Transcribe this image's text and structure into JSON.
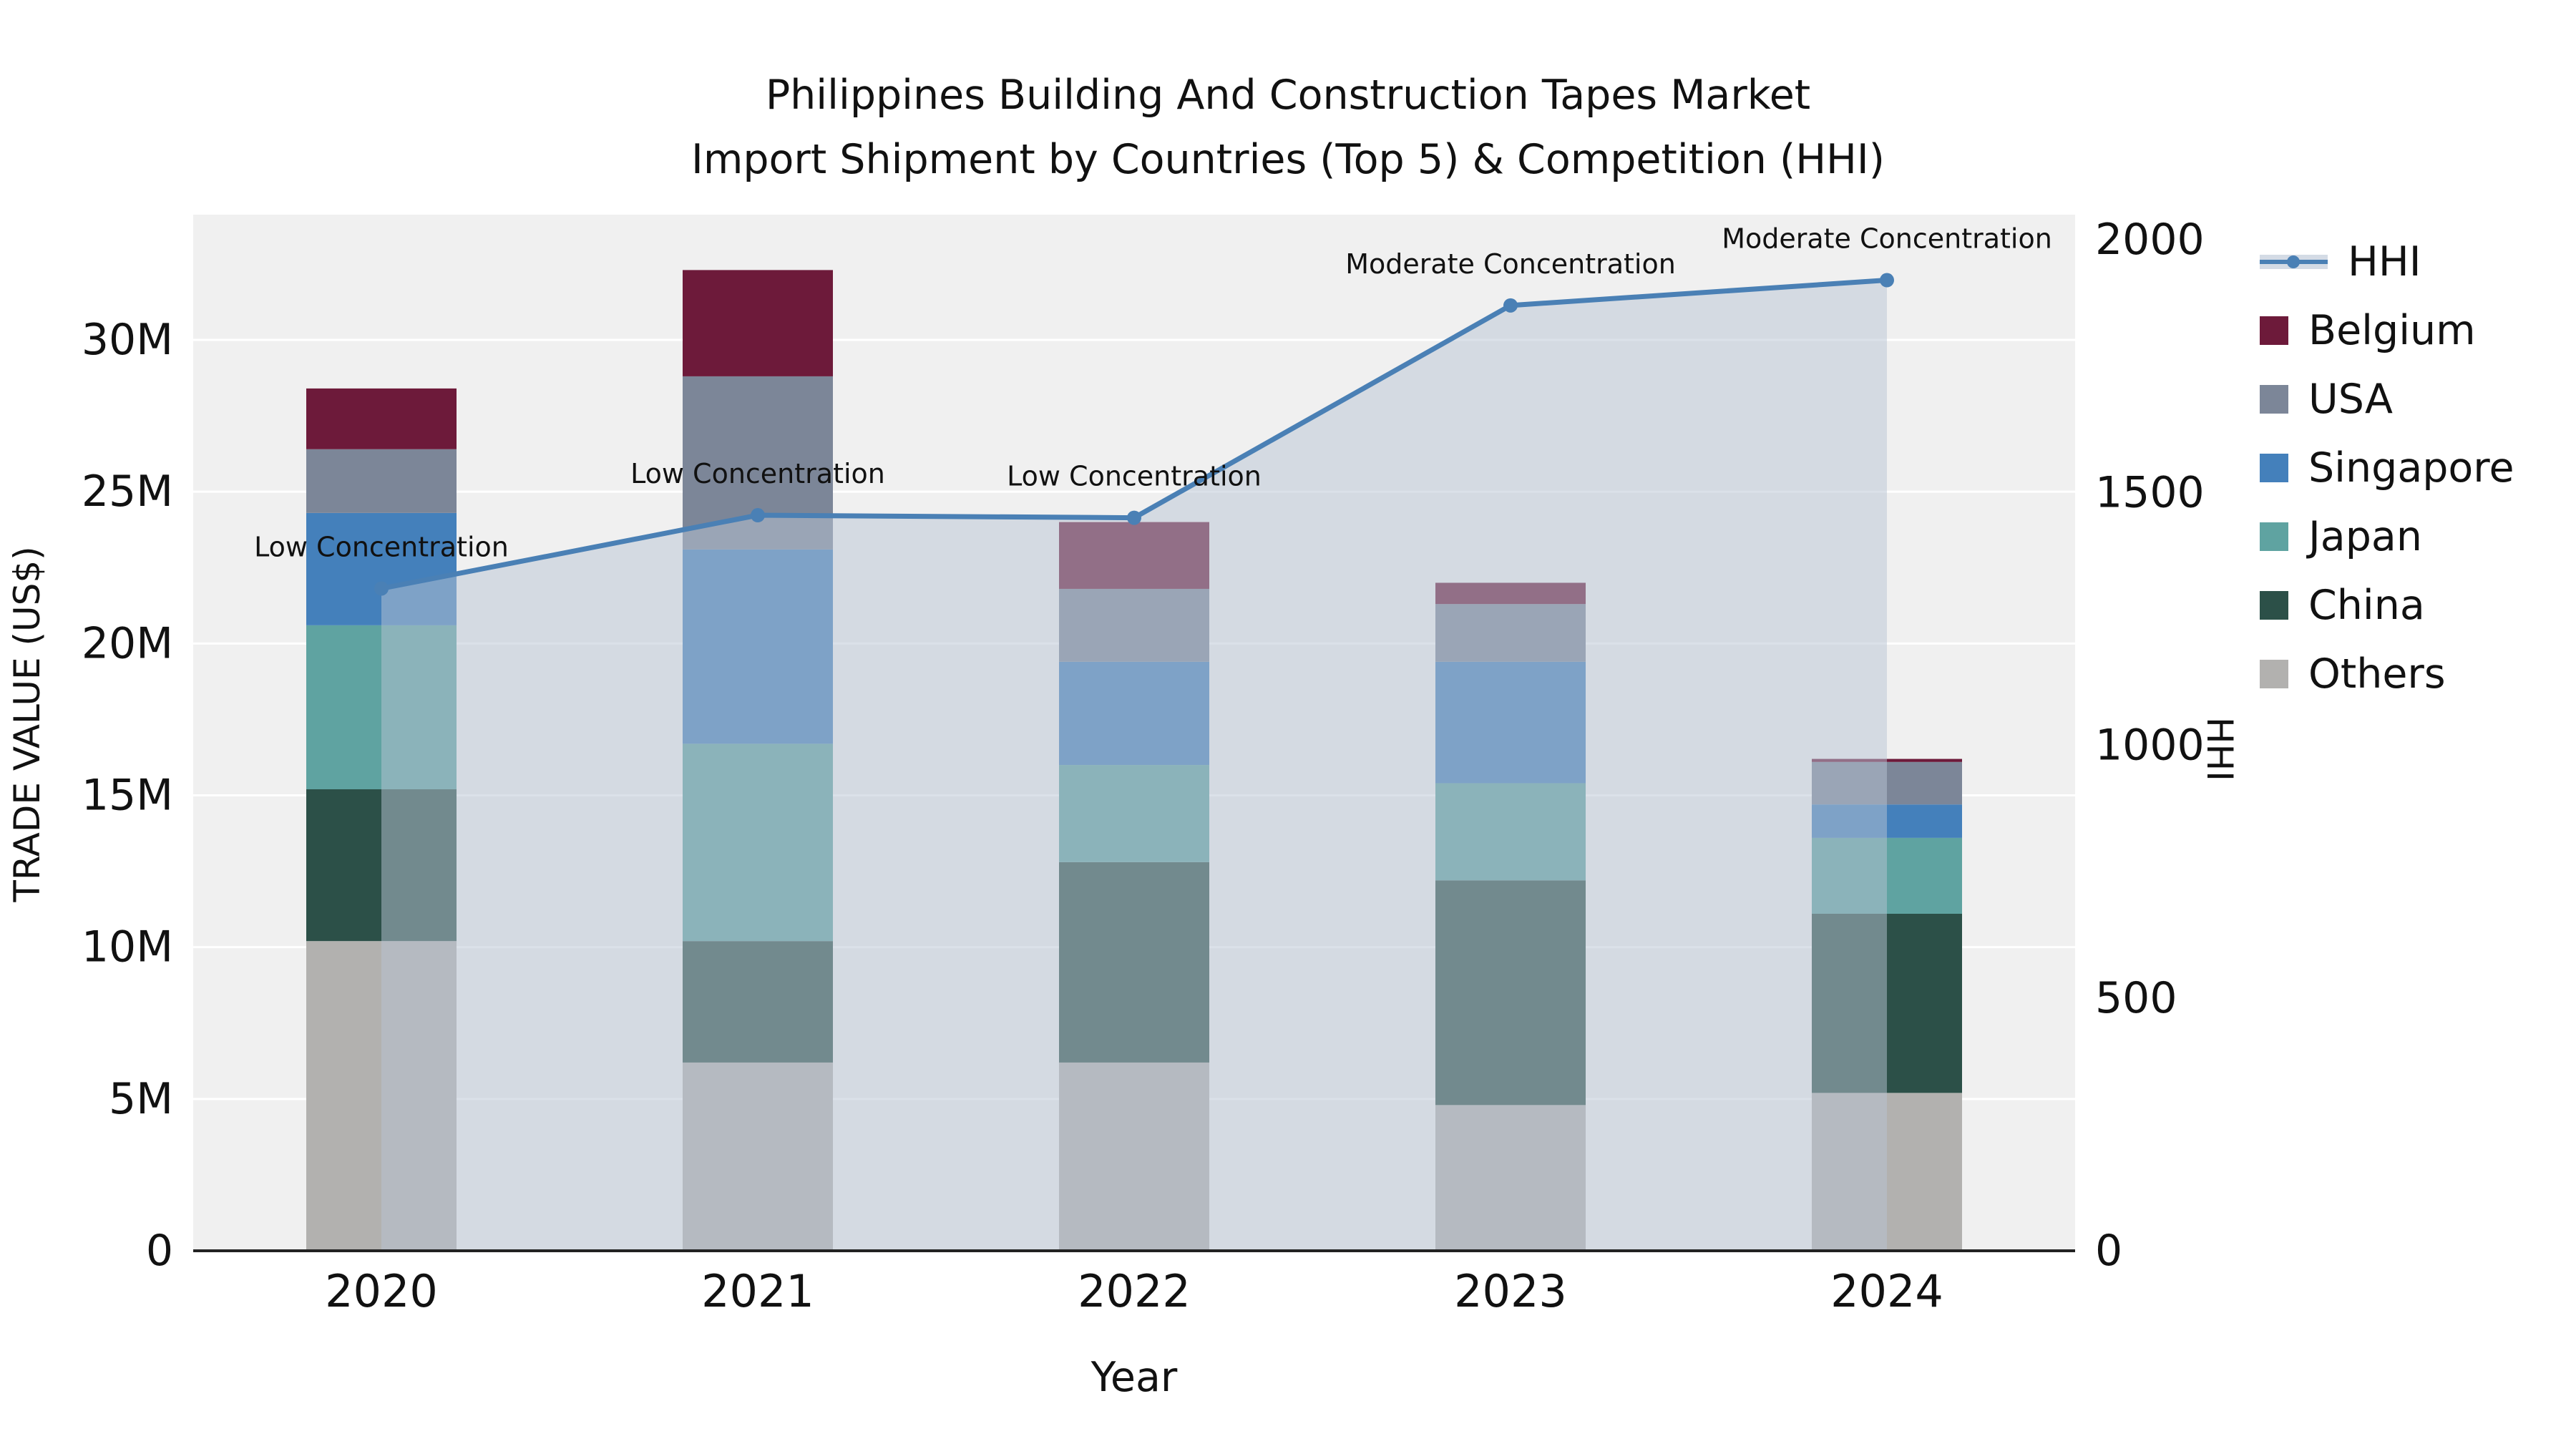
{
  "title": {
    "line1": "Philippines Building And Construction Tapes Market",
    "line2": "Import Shipment by Countries (Top 5) & Competition (HHI)"
  },
  "axes": {
    "y_left_label": "TRADE VALUE (US$)",
    "y_right_label": "HHI",
    "x_label": "Year"
  },
  "chart_data": {
    "type": "bar",
    "stacked": true,
    "title": "Philippines Building And Construction Tapes Market Import Shipment by Countries (Top 5) & Competition (HHI)",
    "categories": [
      "2020",
      "2021",
      "2022",
      "2023",
      "2024"
    ],
    "bar_value_unit": "M US$",
    "bar_series": [
      {
        "name": "Others",
        "color": "#b2b1af",
        "values": [
          10.2,
          6.2,
          6.2,
          4.8,
          5.2
        ]
      },
      {
        "name": "China",
        "color": "#2c5048",
        "values": [
          5.0,
          4.0,
          6.6,
          7.4,
          5.9
        ]
      },
      {
        "name": "Japan",
        "color": "#5fa3a1",
        "values": [
          5.4,
          6.5,
          3.2,
          3.2,
          2.5
        ]
      },
      {
        "name": "Singapore",
        "color": "#4480bb",
        "values": [
          3.7,
          6.4,
          3.4,
          4.0,
          1.1
        ]
      },
      {
        "name": "USA",
        "color": "#7c8698",
        "values": [
          2.1,
          5.7,
          2.4,
          1.9,
          1.4
        ]
      },
      {
        "name": "Belgium",
        "color": "#6d1a3a",
        "values": [
          2.0,
          3.5,
          2.2,
          0.7,
          0.1
        ]
      }
    ],
    "line_series": {
      "name": "HHI",
      "color": "#4a80b5",
      "area_color": "#b7c3d3",
      "area_opacity": 0.5,
      "values": [
        1310,
        1455,
        1450,
        1870,
        1920
      ]
    },
    "annotations": [
      {
        "category": "2020",
        "text": "Low Concentration"
      },
      {
        "category": "2021",
        "text": "Low Concentration"
      },
      {
        "category": "2022",
        "text": "Low Concentration"
      },
      {
        "category": "2023",
        "text": "Moderate Concentration"
      },
      {
        "category": "2024",
        "text": "Moderate Concentration"
      }
    ],
    "left_axis": {
      "label": "TRADE VALUE (US$)",
      "tick_values": [
        0,
        5,
        10,
        15,
        20,
        25,
        30
      ],
      "tick_labels": [
        "0",
        "5M",
        "10M",
        "15M",
        "20M",
        "25M",
        "30M"
      ],
      "range": [
        0,
        34.1
      ]
    },
    "right_axis": {
      "label": "HHI",
      "tick_values": [
        0,
        500,
        1000,
        1500,
        2000
      ],
      "tick_labels": [
        "0",
        "500",
        "1000",
        "1500",
        "2000"
      ],
      "range": [
        0,
        2050
      ]
    },
    "x_axis": {
      "label": "Year"
    },
    "plot_bg": "#f0f0f0",
    "grid_color": "#ffffff"
  },
  "legend": {
    "items": [
      {
        "label": "HHI",
        "marker": "line",
        "color": "#4a80b5"
      },
      {
        "label": "Belgium",
        "marker": "square",
        "color": "#6d1a3a"
      },
      {
        "label": "USA",
        "marker": "square",
        "color": "#7c8698"
      },
      {
        "label": "Singapore",
        "marker": "square",
        "color": "#4480bb"
      },
      {
        "label": "Japan",
        "marker": "square",
        "color": "#5fa3a1"
      },
      {
        "label": "China",
        "marker": "square",
        "color": "#2c5048"
      },
      {
        "label": "Others",
        "marker": "square",
        "color": "#b2b1af"
      }
    ]
  }
}
